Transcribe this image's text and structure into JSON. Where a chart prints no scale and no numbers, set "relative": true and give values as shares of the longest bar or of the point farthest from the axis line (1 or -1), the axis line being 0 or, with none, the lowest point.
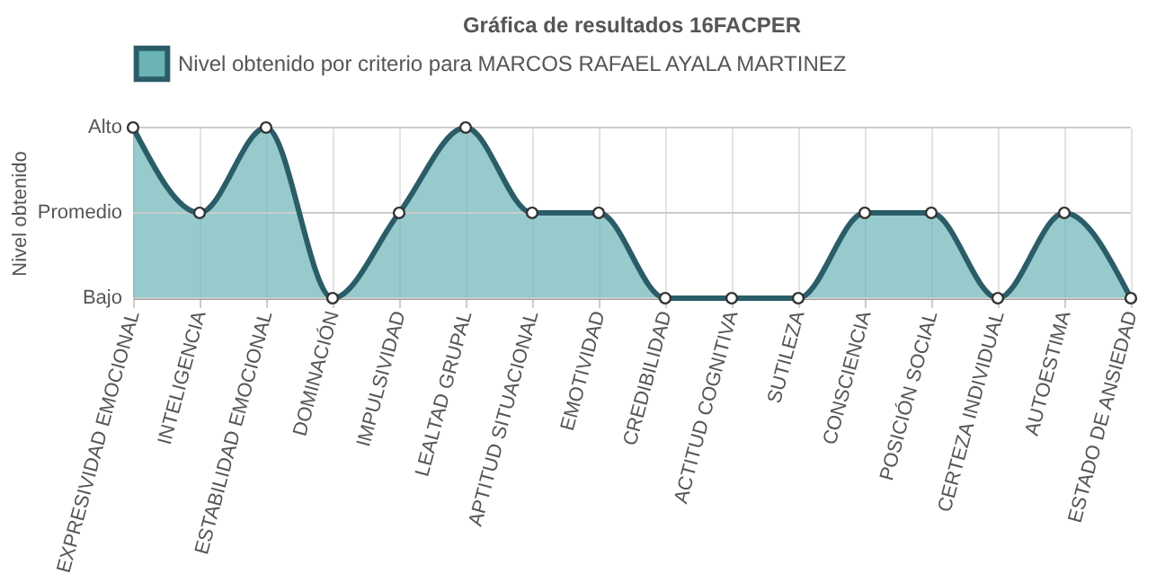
{
  "chart_data": {
    "type": "area",
    "title": "Gráfica de resultados 16FACPER",
    "ylabel": "Nivel obtenido",
    "categories": [
      "EXPRESIVIDAD EMOCIONAL",
      "INTELIGENCIA",
      "ESTABILIDAD EMOCIONAL",
      "DOMINACIÓN",
      "IMPULSIVIDAD",
      "LEALTAD GRUPAL",
      "APTITUD SITUACIONAL",
      "EMOTIVIDAD",
      "CREDIBILIDAD",
      "ACTITUD COGNITIVA",
      "SUTILEZA",
      "CONSCIENCIA",
      "POSICIÓN SOCIAL",
      "CERTEZA INDIVIDUAL",
      "AUTOESTIMA",
      "ESTADO DE ANSIEDAD"
    ],
    "series": [
      {
        "name": "Nivel obtenido por criterio para MARCOS RAFAEL AYALA MARTINEZ",
        "color": "#2b5d68",
        "values": [
          1,
          0.5,
          1,
          0,
          0.5,
          1,
          0.5,
          0.5,
          0,
          0,
          0,
          0.5,
          0.5,
          0,
          0.5,
          0
        ]
      }
    ],
    "relative": true,
    "ref_lines": [
      {
        "axis": "y",
        "value": 0,
        "label": "Bajo",
        "color": "#cccccc"
      },
      {
        "axis": "y",
        "value": 0.5,
        "label": "Promedio",
        "color": "#cccccc"
      },
      {
        "axis": "y",
        "value": 1,
        "label": "Alto",
        "color": "#cccccc"
      }
    ],
    "grid": "x",
    "legend": "top",
    "marker": "circle",
    "line_style": "solid"
  }
}
